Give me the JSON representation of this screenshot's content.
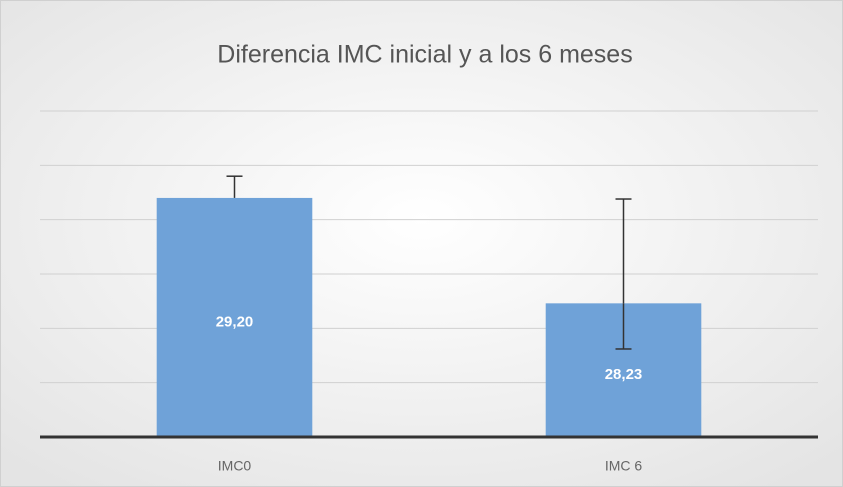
{
  "chart_data": {
    "type": "bar",
    "title": "Diferencia IMC inicial y a los 6 meses",
    "categories": [
      "IMC0",
      "IMC 6"
    ],
    "values": [
      29.2,
      28.23
    ],
    "value_labels": [
      "29,20",
      "28,23"
    ],
    "error_plus": [
      0.2,
      0.96
    ],
    "error_minus": [
      null,
      0.42
    ],
    "color": "#6fa2d8",
    "ylim": [
      27,
      30
    ],
    "yticks": [
      27,
      27.5,
      28,
      28.5,
      29,
      29.5,
      30
    ],
    "grid": true
  }
}
